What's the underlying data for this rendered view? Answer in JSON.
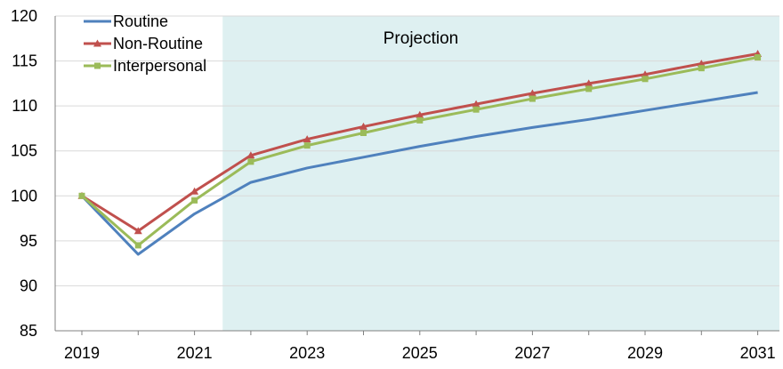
{
  "chart_data": {
    "type": "line",
    "x": [
      "2019",
      "2020",
      "2021",
      "2022",
      "2023",
      "2024",
      "2025",
      "2026",
      "2027",
      "2028",
      "2029",
      "2030",
      "2031"
    ],
    "x_tick_labels": [
      "2019",
      "2021",
      "2023",
      "2025",
      "2027",
      "2029",
      "2031"
    ],
    "ylim": [
      85,
      120
    ],
    "y_ticks": [
      85,
      90,
      95,
      100,
      105,
      110,
      115,
      120
    ],
    "grid": "horizontal",
    "legend_position": "top-left",
    "annotation": "Projection",
    "projection_start": "2021.5",
    "series": [
      {
        "name": "Routine",
        "color": "#4F81BD",
        "marker": "none",
        "values": [
          100,
          93.5,
          98,
          101.5,
          103.1,
          104.3,
          105.5,
          106.6,
          107.6,
          108.5,
          109.5,
          110.5,
          111.5
        ]
      },
      {
        "name": "Non-Routine",
        "color": "#C0504D",
        "marker": "triangle",
        "values": [
          100,
          96.1,
          100.5,
          104.5,
          106.3,
          107.7,
          109.0,
          110.2,
          111.4,
          112.5,
          113.5,
          114.7,
          115.8
        ]
      },
      {
        "name": "Interpersonal",
        "color": "#9BBB59",
        "marker": "square",
        "values": [
          100,
          94.5,
          99.5,
          103.8,
          105.6,
          107.0,
          108.4,
          109.6,
          110.8,
          111.9,
          113.0,
          114.2,
          115.4
        ]
      }
    ],
    "colors": {
      "projection_fill": "#DEF0F1",
      "grid": "#D9D9D9",
      "axis": "#808080"
    }
  }
}
